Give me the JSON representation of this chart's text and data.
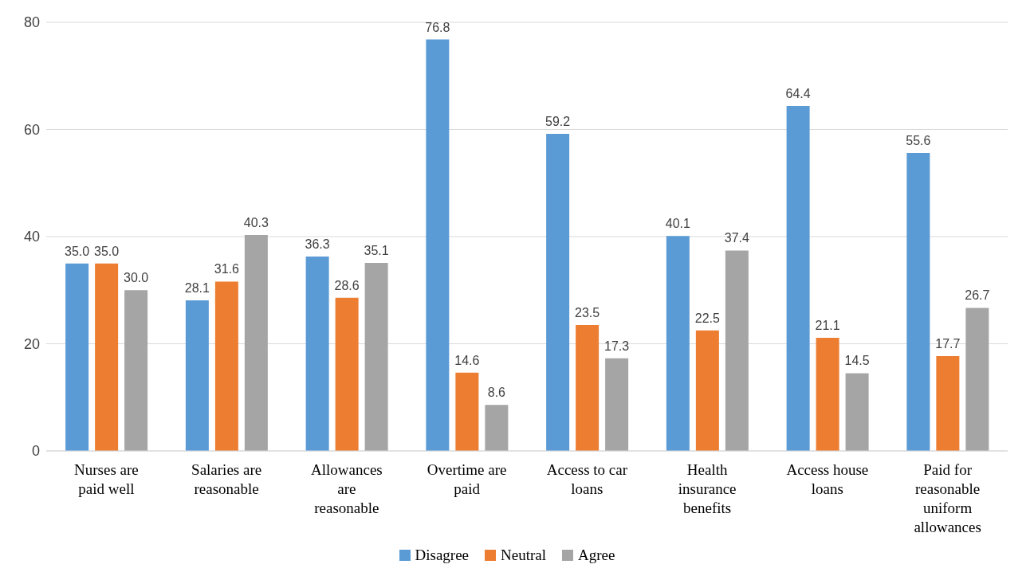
{
  "chart_data": {
    "type": "bar",
    "categories": [
      "Nurses are paid well",
      "Salaries are reasonable",
      "Allowances are reasonable",
      "Overtime are paid",
      "Access to car loans",
      "Health insurance benefits",
      "Access house loans",
      "Paid for reasonable uniform allowances"
    ],
    "series": [
      {
        "name": "Disagree",
        "color": "#5b9bd5",
        "values": [
          35.0,
          28.1,
          36.3,
          76.8,
          59.2,
          40.1,
          64.4,
          55.6
        ],
        "value_labels": [
          "35.0",
          "28.1",
          "36.3",
          "76.8",
          "59.2",
          "40.1",
          "64.4",
          "55.6"
        ]
      },
      {
        "name": "Neutral",
        "color": "#ed7d31",
        "values": [
          35.0,
          31.6,
          28.6,
          14.6,
          23.5,
          22.5,
          21.1,
          17.7
        ],
        "value_labels": [
          "35.0",
          "31.6",
          "28.6",
          "14.6",
          "23.5",
          "22.5",
          "21.1",
          "17.7"
        ]
      },
      {
        "name": "Agree",
        "color": "#a5a5a5",
        "values": [
          30.0,
          40.3,
          35.1,
          8.6,
          17.3,
          37.4,
          14.5,
          26.7
        ],
        "value_labels": [
          "30.0",
          "40.3",
          "35.1",
          "8.6",
          "17.3",
          "37.4",
          "14.5",
          "26.7"
        ]
      }
    ],
    "ylim": [
      0,
      80
    ],
    "yticks": [
      0,
      20,
      40,
      60,
      80
    ],
    "grid": "y",
    "legend": "bottom"
  }
}
